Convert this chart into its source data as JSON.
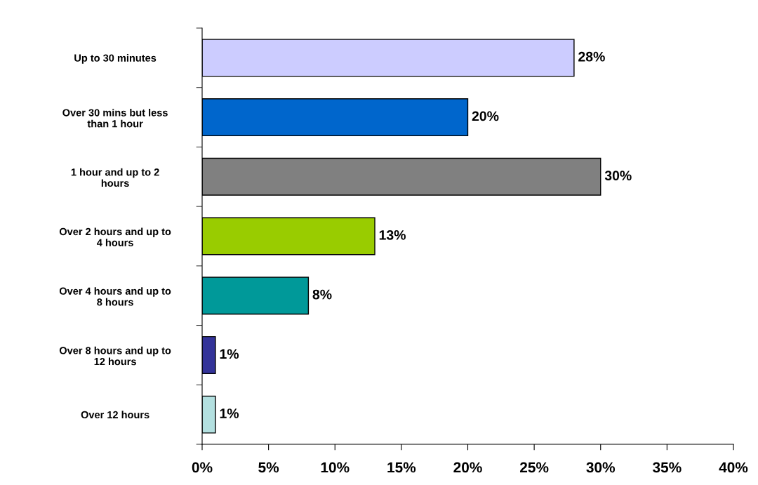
{
  "chart_data": {
    "type": "bar",
    "orientation": "horizontal",
    "categories": [
      "Up to 30 minutes",
      "Over 30 mins but less than 1 hour",
      "1 hour and up to 2 hours",
      "Over 2 hours and up to 4 hours",
      "Over 4 hours and up to 8 hours",
      "Over 8 hours and up to 12 hours",
      "Over 12 hours"
    ],
    "values": [
      28,
      20,
      30,
      13,
      8,
      1,
      1
    ],
    "colors": [
      "#ccccff",
      "#0066cc",
      "#808080",
      "#99cc00",
      "#009999",
      "#333399",
      "#b3e0e0"
    ],
    "value_labels": [
      "28%",
      "20%",
      "30%",
      "13%",
      "8%",
      "1%",
      "1%"
    ],
    "xlim": [
      0,
      40
    ],
    "xticks": [
      {
        "value": 0,
        "label": "0%"
      },
      {
        "value": 5,
        "label": "5%"
      },
      {
        "value": 10,
        "label": "10%"
      },
      {
        "value": 15,
        "label": "15%"
      },
      {
        "value": 20,
        "label": "20%"
      },
      {
        "value": 25,
        "label": "25%"
      },
      {
        "value": 30,
        "label": "30%"
      },
      {
        "value": 35,
        "label": "35%"
      },
      {
        "value": 40,
        "label": "40%"
      }
    ],
    "grid": false,
    "legend": false
  }
}
